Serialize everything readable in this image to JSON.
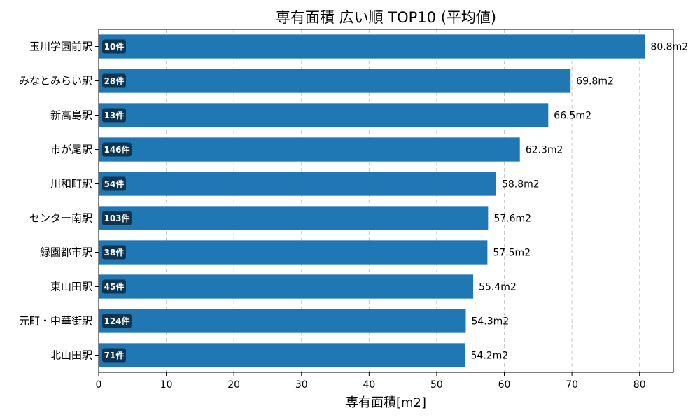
{
  "chart_data": {
    "type": "bar",
    "orientation": "horizontal",
    "title": "専有面積 広い順 TOP10 (平均値)",
    "xlabel": "専有面積[m2]",
    "ylabel": "",
    "xlim": [
      0,
      85
    ],
    "xticks": [
      0,
      10,
      20,
      30,
      40,
      50,
      60,
      70,
      80
    ],
    "grid": "vertical-dashed",
    "bar_color": "#1f77b4",
    "badge_color": "#0d3550",
    "categories": [
      "玉川学園前駅",
      "みなとみらい駅",
      "新高島駅",
      "市が尾駅",
      "川和町駅",
      "センター南駅",
      "緑園都市駅",
      "東山田駅",
      "元町・中華街駅",
      "北山田駅"
    ],
    "values": [
      80.8,
      69.8,
      66.5,
      62.3,
      58.8,
      57.6,
      57.5,
      55.4,
      54.3,
      54.2
    ],
    "value_labels": [
      "80.8m2",
      "69.8m2",
      "66.5m2",
      "62.3m2",
      "58.8m2",
      "57.6m2",
      "57.5m2",
      "55.4m2",
      "54.3m2",
      "54.2m2"
    ],
    "counts": [
      "10件",
      "28件",
      "13件",
      "146件",
      "54件",
      "103件",
      "38件",
      "45件",
      "124件",
      "71件"
    ]
  }
}
